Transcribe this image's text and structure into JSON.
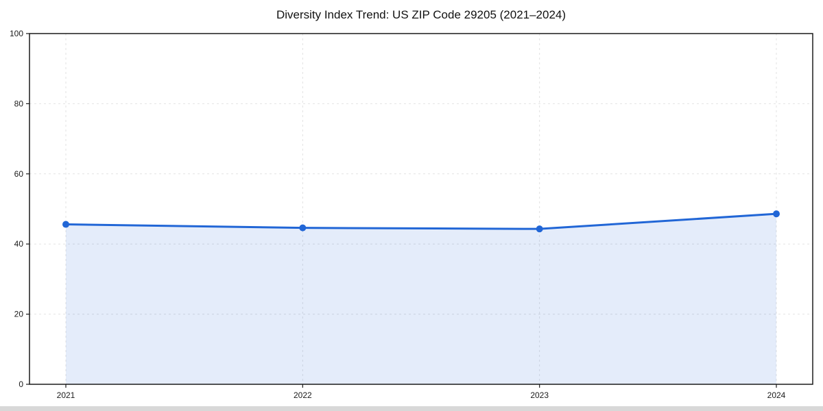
{
  "figure": {
    "background": "#ffffff",
    "bottom_strip_color": "#d8d8d8"
  },
  "chart_data": {
    "type": "area",
    "title": "Diversity Index Trend: US ZIP Code 29205 (2021–2024)",
    "categories": [
      "2021",
      "2022",
      "2023",
      "2024"
    ],
    "series": [
      {
        "name": "Diversity Index",
        "values": [
          45.6,
          44.6,
          44.3,
          48.6
        ]
      }
    ],
    "xlabel": "",
    "ylabel": "",
    "ylim": [
      0,
      100
    ],
    "yticks": [
      0,
      20,
      40,
      60,
      80,
      100
    ],
    "grid": {
      "visible": true,
      "style": "dashed",
      "color": "#e2e2e2"
    },
    "legend_position": "none",
    "marker_shape": "circle",
    "colors": {
      "line": "#2166d6",
      "marker": "#2166d6",
      "fill": "#2166d6",
      "fill_opacity": 0.12,
      "spine": "#1a1a1a",
      "tick_text": "#1a1a1a",
      "background": "#ffffff"
    }
  }
}
